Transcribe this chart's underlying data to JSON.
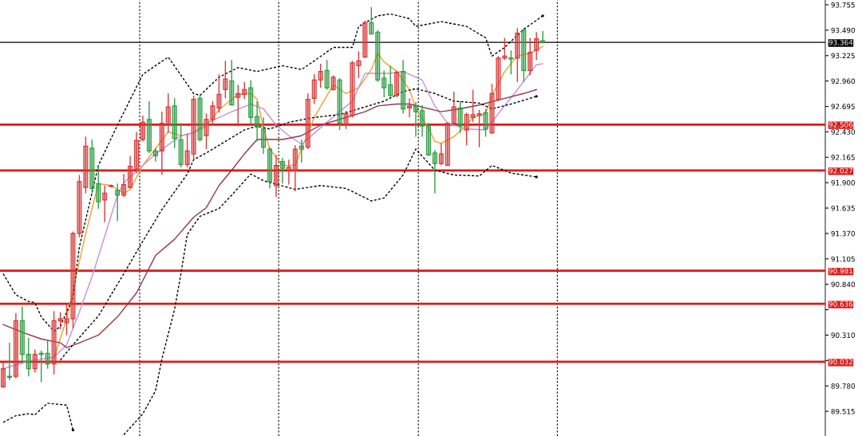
{
  "chart_data": {
    "type": "candlestick",
    "categories": [
      null,
      null,
      null,
      null,
      null,
      null,
      null,
      null,
      null,
      null,
      null,
      null,
      null,
      null,
      null,
      null,
      null,
      null,
      null,
      null,
      null,
      null,
      null,
      null,
      null,
      null,
      null,
      null,
      null,
      null,
      null,
      null,
      null,
      null,
      null,
      null,
      null,
      null,
      null,
      null,
      null,
      null,
      null,
      null,
      null,
      null,
      null,
      null,
      null,
      null,
      null,
      null,
      null,
      null,
      null,
      null,
      null,
      null,
      null,
      null,
      null,
      null,
      null,
      null,
      null,
      null,
      null,
      null,
      null,
      null,
      null,
      null,
      null,
      null,
      null,
      null,
      null,
      null,
      null,
      null,
      null,
      null,
      null,
      null,
      null,
      null,
      null,
      null,
      null,
      null,
      null,
      null,
      null,
      null,
      null,
      null,
      null,
      null,
      null,
      null,
      null,
      null,
      null,
      null,
      null,
      null,
      null,
      null,
      null,
      null,
      null,
      null,
      null,
      null,
      null,
      null,
      null,
      null,
      null,
      null,
      null,
      null,
      null,
      null,
      null,
      null,
      null,
      null,
      null,
      null
    ],
    "ohlc": [
      [
        89.77,
        90.02,
        89.76,
        89.96
      ],
      [
        89.88,
        90.23,
        89.84,
        89.87
      ],
      [
        89.88,
        90.54,
        89.86,
        90.46
      ],
      [
        90.46,
        90.61,
        90.01,
        90.11
      ],
      [
        90.11,
        90.28,
        89.88,
        89.96
      ],
      [
        89.96,
        90.16,
        89.92,
        90.11
      ],
      [
        90.12,
        90.15,
        89.82,
        90.11
      ],
      [
        90.12,
        90.26,
        89.96,
        90.01
      ],
      [
        90.01,
        90.56,
        89.9,
        90.46
      ],
      [
        90.46,
        90.55,
        90.37,
        90.48
      ],
      [
        90.44,
        90.63,
        90.31,
        90.48
      ],
      [
        90.48,
        91.39,
        90.38,
        91.37
      ],
      [
        91.37,
        91.98,
        91.33,
        91.91
      ],
      [
        91.85,
        92.38,
        91.79,
        92.28
      ],
      [
        92.26,
        92.35,
        91.79,
        91.84
      ],
      [
        91.89,
        92.08,
        91.63,
        91.7
      ],
      [
        91.72,
        91.87,
        91.49,
        91.79
      ],
      [
        91.86,
        91.88,
        91.85,
        91.87
      ],
      [
        91.82,
        91.89,
        91.5,
        91.77
      ],
      [
        91.77,
        91.99,
        91.75,
        91.88
      ],
      [
        91.85,
        92.18,
        91.84,
        92.07
      ],
      [
        92.04,
        92.43,
        92.0,
        92.34
      ],
      [
        92.35,
        92.6,
        92.33,
        92.53
      ],
      [
        92.56,
        92.75,
        92.21,
        92.23
      ],
      [
        92.23,
        92.26,
        92.12,
        92.18
      ],
      [
        92.23,
        92.64,
        91.98,
        92.52
      ],
      [
        92.5,
        92.83,
        92.42,
        92.69
      ],
      [
        92.7,
        92.78,
        92.26,
        92.36
      ],
      [
        92.35,
        92.52,
        92.06,
        92.09
      ],
      [
        92.09,
        92.41,
        92.06,
        92.23
      ],
      [
        92.2,
        92.81,
        92.14,
        92.77
      ],
      [
        92.78,
        92.82,
        92.33,
        92.35
      ],
      [
        92.39,
        92.62,
        92.25,
        92.56
      ],
      [
        92.56,
        92.75,
        92.5,
        92.7
      ],
      [
        92.68,
        93.03,
        92.63,
        92.82
      ],
      [
        92.87,
        93.17,
        92.78,
        92.98
      ],
      [
        92.96,
        93.18,
        92.71,
        92.71
      ],
      [
        92.79,
        92.92,
        92.49,
        92.83
      ],
      [
        92.82,
        92.95,
        92.77,
        92.87
      ],
      [
        92.89,
        92.97,
        92.51,
        92.58
      ],
      [
        92.59,
        92.75,
        92.33,
        92.48
      ],
      [
        92.46,
        92.58,
        92.2,
        92.27
      ],
      [
        92.25,
        92.27,
        91.84,
        91.91
      ],
      [
        91.87,
        92.19,
        91.75,
        92.08
      ],
      [
        92.12,
        92.16,
        91.89,
        92.05
      ],
      [
        92.03,
        92.14,
        91.88,
        92.06
      ],
      [
        92.03,
        92.29,
        91.81,
        92.25
      ],
      [
        92.28,
        92.35,
        92.11,
        92.25
      ],
      [
        92.27,
        92.83,
        92.25,
        92.77
      ],
      [
        92.78,
        93.03,
        92.72,
        92.97
      ],
      [
        92.97,
        93.14,
        92.89,
        93.06
      ],
      [
        93.07,
        93.18,
        92.87,
        92.89
      ],
      [
        92.87,
        93.02,
        92.86,
        93.0
      ],
      [
        92.97,
        92.99,
        92.45,
        92.52
      ],
      [
        92.5,
        92.65,
        92.46,
        92.62
      ],
      [
        92.6,
        93.17,
        92.58,
        93.15
      ],
      [
        93.12,
        93.27,
        92.99,
        93.17
      ],
      [
        93.21,
        93.59,
        93.2,
        93.57
      ],
      [
        93.57,
        93.73,
        93.45,
        93.45
      ],
      [
        93.47,
        93.49,
        92.95,
        92.97
      ],
      [
        92.99,
        93.07,
        92.79,
        92.89
      ],
      [
        92.92,
        93.12,
        92.79,
        92.81
      ],
      [
        92.81,
        93.07,
        92.79,
        93.05
      ],
      [
        93.06,
        93.18,
        92.62,
        92.67
      ],
      [
        92.68,
        92.78,
        92.58,
        92.7
      ],
      [
        92.7,
        92.74,
        92.38,
        92.64
      ],
      [
        92.65,
        92.71,
        92.38,
        92.49
      ],
      [
        92.49,
        92.52,
        92.18,
        92.19
      ],
      [
        92.21,
        92.24,
        91.79,
        92.1
      ],
      [
        92.1,
        92.31,
        92.08,
        92.2
      ],
      [
        92.08,
        92.53,
        92.08,
        92.52
      ],
      [
        92.52,
        92.85,
        92.5,
        92.69
      ],
      [
        92.68,
        92.75,
        92.42,
        92.49
      ],
      [
        92.45,
        92.63,
        92.29,
        92.61
      ],
      [
        92.58,
        92.87,
        92.53,
        92.61
      ],
      [
        92.6,
        92.66,
        92.27,
        92.62
      ],
      [
        92.63,
        92.67,
        92.38,
        92.46
      ],
      [
        92.42,
        92.93,
        92.41,
        92.83
      ],
      [
        92.77,
        93.22,
        92.75,
        93.2
      ],
      [
        93.2,
        93.41,
        93.18,
        93.22
      ],
      [
        93.2,
        93.28,
        93.03,
        93.19
      ],
      [
        93.2,
        93.51,
        92.95,
        93.46
      ],
      [
        93.49,
        93.51,
        92.95,
        93.07
      ],
      [
        93.07,
        93.41,
        93.02,
        93.26
      ],
      [
        93.28,
        93.47,
        93.18,
        93.4
      ],
      [
        93.38,
        93.48,
        93.36,
        93.36
      ],
      null,
      null,
      null,
      null,
      null,
      null,
      null,
      null,
      null,
      null,
      null,
      null,
      null,
      null,
      null,
      null,
      null,
      null,
      null,
      null,
      null,
      null,
      null,
      null,
      null,
      null,
      null,
      null,
      null,
      null,
      null,
      null,
      null,
      null,
      null,
      null,
      null,
      null,
      null,
      null,
      null,
      null,
      null,
      null
    ],
    "colors": [
      "#d83a3a",
      "#2f9e44",
      "#d83a3a",
      "#2f9e44",
      "#2f9e44",
      "#d83a3a",
      "#2f9e44",
      "#2f9e44",
      "#d83a3a",
      "#d83a3a",
      "#d83a3a",
      "#d83a3a",
      "#d83a3a",
      "#d83a3a",
      "#2f9e44",
      "#2f9e44",
      "#d83a3a",
      "#d83a3a",
      "#2f9e44",
      "#d83a3a",
      "#d83a3a",
      "#d83a3a",
      "#d83a3a",
      "#2f9e44",
      "#2f9e44",
      "#d83a3a",
      "#d83a3a",
      "#2f9e44",
      "#2f9e44",
      "#d83a3a",
      "#d83a3a",
      "#2f9e44",
      "#d83a3a",
      "#d83a3a",
      "#d83a3a",
      "#d83a3a",
      "#2f9e44",
      "#d83a3a",
      "#d83a3a",
      "#2f9e44",
      "#2f9e44",
      "#2f9e44",
      "#2f9e44",
      "#d83a3a",
      "#2f9e44",
      "#d83a3a",
      "#d83a3a",
      "#2f9e44",
      "#d83a3a",
      "#d83a3a",
      "#d83a3a",
      "#2f9e44",
      "#d83a3a",
      "#2f9e44",
      "#d83a3a",
      "#d83a3a",
      "#d83a3a",
      "#d83a3a",
      "#2f9e44",
      "#2f9e44",
      "#2f9e44",
      "#2f9e44",
      "#d83a3a",
      "#2f9e44",
      "#d83a3a",
      "#2f9e44",
      "#2f9e44",
      "#2f9e44",
      "#2f9e44",
      "#d83a3a",
      "#d83a3a",
      "#d83a3a",
      "#2f9e44",
      "#d83a3a",
      "#d83a3a",
      "#d83a3a",
      "#2f9e44",
      "#d83a3a",
      "#d83a3a",
      "#d83a3a",
      "#2f9e44",
      "#d83a3a",
      "#2f9e44",
      "#d83a3a",
      "#d83a3a",
      "#2f9e44",
      null,
      null,
      null,
      null,
      null,
      null,
      null,
      null,
      null,
      null,
      null,
      null,
      null,
      null,
      null,
      null,
      null,
      null,
      null,
      null,
      null,
      null,
      null,
      null,
      null,
      null,
      null,
      null,
      null,
      null,
      null,
      null,
      null,
      null,
      null,
      null,
      null,
      null,
      null,
      null,
      null,
      null,
      null,
      null
    ],
    "series": [
      {
        "type": "line",
        "color": "#f0a030",
        "line_style": "solid",
        "values": [
          null,
          null,
          null,
          null,
          null,
          null,
          null,
          null,
          90.07,
          null,
          90.48,
          null,
          null,
          91.37,
          null,
          91.89,
          null,
          91.87,
          null,
          91.79,
          91.83,
          null,
          92.08,
          null,
          null,
          null,
          92.43,
          null,
          92.39,
          null,
          92.42,
          null,
          92.49,
          null,
          92.66,
          null,
          92.77,
          92.82,
          null,
          92.83,
          92.77,
          92.47,
          92.25,
          null,
          92.08,
          null,
          92.08,
          92.25,
          null,
          92.58,
          null,
          null,
          92.92,
          null,
          92.83,
          null,
          92.89,
          null,
          93.08,
          93.25,
          93.16,
          null,
          93.06,
          null,
          92.87,
          92.67,
          null,
          92.47,
          92.33,
          92.31,
          null,
          92.38,
          null,
          92.5,
          92.58,
          null,
          92.62,
          92.81,
          null,
          93.06,
          null,
          93.22,
          null,
          93.25,
          null,
          93.32,
          null,
          null,
          null,
          null,
          null,
          null,
          null,
          null,
          null,
          null,
          null,
          null,
          null,
          null,
          null,
          null,
          null,
          null,
          null,
          null,
          null,
          null,
          null,
          null,
          null,
          null,
          null,
          null,
          null,
          null,
          null,
          null,
          null,
          null,
          null,
          null,
          null,
          null,
          null,
          null,
          null,
          null,
          null,
          null
        ]
      },
      {
        "type": "line",
        "color": "#c38fe0",
        "line_style": "solid",
        "values": [
          89.96,
          null,
          null,
          null,
          90.04,
          null,
          null,
          null,
          90.08,
          null,
          90.21,
          null,
          90.55,
          null,
          90.92,
          null,
          91.34,
          null,
          91.77,
          91.9,
          null,
          92.02,
          null,
          null,
          92.2,
          null,
          null,
          null,
          92.39,
          null,
          92.42,
          null,
          92.52,
          null,
          92.58,
          null,
          92.64,
          null,
          null,
          92.72,
          null,
          92.67,
          null,
          92.5,
          null,
          92.39,
          null,
          92.3,
          null,
          null,
          null,
          92.53,
          null,
          null,
          null,
          92.75,
          null,
          93.04,
          null,
          null,
          null,
          93.04,
          null,
          93.06,
          null,
          null,
          92.97,
          null,
          92.7,
          null,
          92.52,
          null,
          null,
          92.46,
          null,
          null,
          92.45,
          null,
          92.62,
          null,
          null,
          92.87,
          null,
          null,
          93.13,
          93.14,
          null,
          null,
          null,
          null,
          null,
          null,
          null,
          null,
          null,
          null,
          null,
          null,
          null,
          null,
          null,
          null,
          null,
          null,
          null,
          null,
          null,
          null,
          null,
          null,
          null,
          null,
          null,
          null,
          null,
          null,
          null,
          null,
          null,
          null,
          null,
          null,
          null,
          null,
          null,
          null,
          null,
          null,
          null,
          null
        ]
      },
      {
        "type": "line",
        "color": "#963446",
        "line_style": "solid",
        "values": [
          90.42,
          null,
          null,
          90.34,
          null,
          null,
          90.27,
          null,
          null,
          90.23,
          90.18,
          null,
          90.23,
          null,
          null,
          90.31,
          null,
          null,
          90.5,
          null,
          null,
          90.75,
          null,
          null,
          91.14,
          null,
          null,
          91.31,
          null,
          null,
          91.54,
          null,
          91.64,
          null,
          91.87,
          null,
          92.03,
          null,
          92.2,
          null,
          92.35,
          null,
          null,
          null,
          92.35,
          null,
          null,
          92.39,
          null,
          null,
          92.5,
          null,
          null,
          null,
          92.58,
          null,
          null,
          92.64,
          null,
          92.7,
          null,
          null,
          92.72,
          null,
          92.72,
          null,
          null,
          null,
          null,
          92.64,
          null,
          null,
          92.67,
          null,
          null,
          92.71,
          null,
          null,
          null,
          92.78,
          null,
          null,
          92.83,
          null,
          92.87,
          null,
          null,
          null,
          null,
          null,
          null,
          null,
          null,
          null,
          null,
          null,
          null,
          null,
          null,
          null,
          null,
          null,
          null,
          null,
          null,
          null,
          null,
          null,
          null,
          null,
          null,
          null,
          null,
          null,
          null,
          null,
          null,
          null,
          null,
          null,
          null,
          null,
          null,
          null,
          null,
          null,
          null,
          null,
          null,
          null
        ]
      },
      {
        "type": "line",
        "color": "#000000",
        "line_style": "dashed",
        "values": [
          90.95,
          null,
          90.73,
          null,
          90.66,
          90.65,
          90.5,
          null,
          90.35,
          90.4,
          null,
          90.7,
          91.23,
          null,
          null,
          92.08,
          null,
          null,
          92.5,
          null,
          null,
          null,
          93.03,
          null,
          93.12,
          null,
          93.21,
          null,
          null,
          null,
          92.83,
          92.81,
          null,
          null,
          93.0,
          null,
          null,
          93.1,
          null,
          null,
          93.06,
          null,
          null,
          null,
          93.12,
          null,
          null,
          93.08,
          null,
          93.17,
          null,
          null,
          93.31,
          null,
          null,
          93.31,
          93.53,
          null,
          null,
          93.64,
          null,
          93.66,
          null,
          null,
          93.61,
          93.53,
          null,
          null,
          null,
          93.58,
          null,
          null,
          null,
          93.53,
          null,
          null,
          93.41,
          93.22,
          null,
          93.31,
          null,
          null,
          93.5,
          null,
          null,
          93.64,
          null,
          null,
          null,
          null,
          null,
          null,
          null,
          null,
          null,
          null,
          null,
          null,
          null,
          null,
          null,
          null,
          null,
          null,
          null,
          null,
          null,
          null,
          null,
          null,
          null,
          null,
          null,
          null,
          null,
          null,
          null,
          null,
          null,
          null,
          null,
          null,
          null,
          null,
          null,
          null,
          null,
          null,
          null,
          null
        ]
      },
      {
        "type": "line",
        "color": "#000000",
        "line_style": "dashed",
        "values": [
          null,
          null,
          null,
          null,
          null,
          null,
          null,
          null,
          null,
          90.05,
          null,
          90.21,
          null,
          null,
          null,
          90.51,
          null,
          null,
          null,
          90.95,
          null,
          null,
          91.29,
          null,
          null,
          91.62,
          null,
          null,
          null,
          91.99,
          92.14,
          null,
          92.21,
          null,
          null,
          92.33,
          null,
          null,
          92.45,
          null,
          92.49,
          null,
          92.46,
          null,
          null,
          92.53,
          null,
          null,
          null,
          92.58,
          null,
          null,
          null,
          92.61,
          null,
          null,
          92.67,
          null,
          null,
          null,
          92.75,
          null,
          null,
          92.85,
          null,
          92.88,
          null,
          null,
          92.83,
          null,
          null,
          92.75,
          null,
          null,
          null,
          92.73,
          null,
          92.67,
          null,
          null,
          92.72,
          null,
          null,
          null,
          92.8,
          null,
          null,
          null,
          null,
          null,
          null,
          null,
          null,
          null,
          null,
          null,
          null,
          null,
          null,
          null,
          null,
          null,
          null,
          null,
          null,
          null,
          null,
          null,
          null,
          null,
          null,
          null,
          null,
          null,
          null,
          null,
          null,
          null,
          null,
          null,
          null,
          null,
          null,
          null,
          null,
          null,
          null,
          null,
          null,
          null
        ]
      },
      {
        "type": "line",
        "color": "#000000",
        "line_style": "dashed",
        "values": [
          89.4,
          null,
          89.47,
          null,
          89.49,
          89.48,
          null,
          89.6,
          null,
          null,
          89.58,
          89.32,
          null,
          null,
          null,
          null,
          null,
          null,
          null,
          null,
          null,
          null,
          null,
          null,
          null,
          null,
          null,
          null,
          null,
          null,
          null,
          null,
          null,
          null,
          null,
          null,
          null,
          null,
          null,
          null,
          null,
          null,
          null,
          null,
          null,
          null,
          null,
          null,
          null,
          null,
          null,
          null,
          null,
          null,
          null,
          null,
          null,
          null,
          null,
          null,
          null,
          null,
          null,
          null,
          null,
          null,
          null,
          null,
          null,
          null,
          null,
          null,
          null,
          null,
          null,
          null,
          null,
          null,
          null,
          null,
          null,
          null,
          null,
          null,
          null,
          null,
          null,
          null,
          null,
          null,
          null,
          null,
          null,
          null,
          null,
          null,
          null,
          null,
          null,
          null,
          null,
          null,
          null,
          null,
          null,
          null,
          null,
          null,
          null,
          null,
          null,
          null,
          null,
          null,
          null,
          null,
          null,
          null,
          null,
          null,
          null,
          null,
          null,
          null,
          null,
          null,
          null,
          null,
          null,
          null
        ]
      },
      {
        "type": "line",
        "color": "#000000",
        "line_style": "dashed",
        "values": [
          null,
          null,
          null,
          null,
          null,
          null,
          null,
          null,
          null,
          null,
          null,
          null,
          null,
          null,
          null,
          null,
          null,
          null,
          null,
          89.27,
          null,
          null,
          89.49,
          null,
          89.73,
          90.06,
          null,
          90.58,
          90.95,
          91.36,
          null,
          91.55,
          null,
          null,
          91.63,
          null,
          91.77,
          null,
          null,
          91.99,
          null,
          91.92,
          null,
          null,
          null,
          null,
          91.83,
          null,
          null,
          null,
          91.87,
          null,
          null,
          null,
          91.84,
          null,
          null,
          null,
          91.71,
          null,
          91.74,
          null,
          null,
          91.98,
          null,
          92.25,
          null,
          null,
          92.03,
          null,
          null,
          91.98,
          null,
          null,
          null,
          91.97,
          null,
          92.08,
          null,
          null,
          92.0,
          null,
          null,
          null,
          91.96,
          null,
          null,
          null,
          null,
          null,
          null,
          null,
          null,
          null,
          null,
          null,
          null,
          null,
          null,
          null,
          null,
          null,
          null,
          null,
          null,
          null,
          null,
          null,
          null,
          null,
          null,
          null,
          null,
          null,
          null,
          null,
          null,
          null,
          null,
          null,
          null,
          null,
          null,
          null,
          null,
          null,
          null,
          null,
          null,
          null
        ]
      }
    ],
    "ylim": [
      89.258,
      93.805
    ],
    "yticks": [
      {
        "value": 93.755,
        "label": "93.755"
      },
      {
        "value": 93.49,
        "label": "93.490"
      },
      {
        "value": 93.225,
        "label": "93.225"
      },
      {
        "value": 92.96,
        "label": "92.960"
      },
      {
        "value": 92.695,
        "label": "92.695"
      },
      {
        "value": 92.43,
        "label": "92.430"
      },
      {
        "value": 92.165,
        "label": "92.165"
      },
      {
        "value": 91.9,
        "label": "91.900"
      },
      {
        "value": 91.635,
        "label": "91.635"
      },
      {
        "value": 91.37,
        "label": "91.370"
      },
      {
        "value": 91.105,
        "label": "91.105"
      },
      {
        "value": 90.84,
        "label": "90.840"
      },
      {
        "value": 90.575,
        "label": null
      },
      {
        "value": 90.31,
        "label": "90.310"
      },
      {
        "value": 90.045,
        "label": null
      },
      {
        "value": 89.78,
        "label": "89.780"
      },
      {
        "value": 89.515,
        "label": "89.515"
      }
    ],
    "ref_lines": [
      {
        "axis": "y",
        "value": 93.364,
        "label": "93.364",
        "color": "#000000"
      },
      {
        "axis": "y",
        "value": 92.506,
        "label": "92.506",
        "color": "#e01818"
      },
      {
        "axis": "y",
        "value": 92.027,
        "label": "92.027",
        "color": "#e01818"
      },
      {
        "axis": "y",
        "value": 90.981,
        "label": "90.981",
        "color": "#e01818"
      },
      {
        "axis": "y",
        "value": 90.636,
        "label": "90.636",
        "color": "#e01818"
      },
      {
        "axis": "y",
        "value": 90.032,
        "label": "90.032",
        "color": "#e01818"
      }
    ],
    "tick_labels": "y",
    "grid": false
  }
}
